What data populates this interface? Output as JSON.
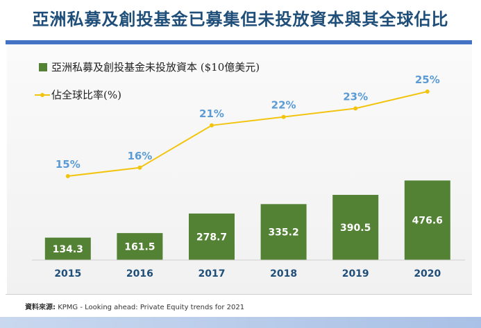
{
  "header": {
    "title": "亞洲私募及創投基金已募集但未投放資本與其全球佔比"
  },
  "chart_data": {
    "type": "bar",
    "categories": [
      "2015",
      "2016",
      "2017",
      "2018",
      "2019",
      "2020"
    ],
    "series": [
      {
        "name": "亞洲私募及創投基金未投放資本 ($10億美元)",
        "kind": "bar",
        "values": [
          134.3,
          161.5,
          278.7,
          335.2,
          390.5,
          476.6
        ],
        "value_labels": [
          "134.3",
          "161.5",
          "278.7",
          "335.2",
          "390.5",
          "476.6"
        ],
        "color": "#548235"
      },
      {
        "name": "佔全球比率(%)",
        "kind": "line",
        "values": [
          15,
          16,
          21,
          22,
          23,
          25
        ],
        "value_labels": [
          "15%",
          "16%",
          "21%",
          "22%",
          "23%",
          "25%"
        ],
        "color": "#f2c40e"
      }
    ],
    "label_color": "#5b9bd5",
    "legend_position": "top-left",
    "grid": false
  },
  "footer": {
    "source_label": "資料來源:",
    "source_text": "KPMG - Looking ahead: Private Equity trends for 2021"
  }
}
